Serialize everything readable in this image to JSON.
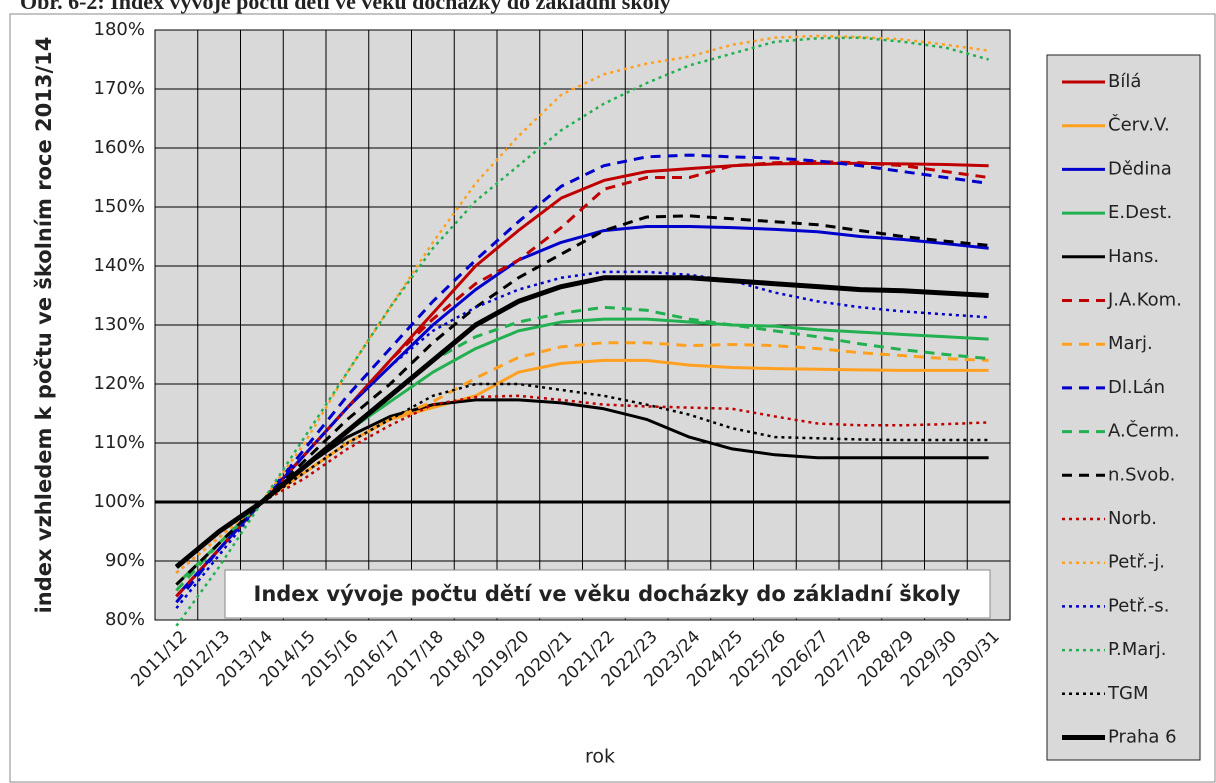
{
  "chart_data": {
    "type": "line",
    "heading": "Obr. 6-2: Index vývoje počtu dětí ve věku docházky do základní školy",
    "title": "Index vývoje počtu dětí ve věku docházky do základní školy",
    "x_label": "rok",
    "y_label": "index vzhledem k počtu ve školním roce 2013/14",
    "categories": [
      "2011/12",
      "2012/13",
      "2013/14",
      "2014/15",
      "2015/16",
      "2016/17",
      "2017/18",
      "2018/19",
      "2019/20",
      "2020/21",
      "2021/22",
      "2022/23",
      "2023/24",
      "2024/25",
      "2025/26",
      "2026/27",
      "2027/28",
      "2028/29",
      "2029/30",
      "2030/31"
    ],
    "ylim": [
      80,
      180
    ],
    "yticks": [
      {
        "value": 80,
        "label": "80%"
      },
      {
        "value": 90,
        "label": "90%"
      },
      {
        "value": 100,
        "label": "100%"
      },
      {
        "value": 110,
        "label": "110%"
      },
      {
        "value": 120,
        "label": "120%"
      },
      {
        "value": 130,
        "label": "130%"
      },
      {
        "value": 140,
        "label": "140%"
      },
      {
        "value": 150,
        "label": "150%"
      },
      {
        "value": 160,
        "label": "160%"
      },
      {
        "value": 170,
        "label": "170%"
      },
      {
        "value": 180,
        "label": "180%"
      }
    ],
    "x_axis_at": 100,
    "grid": true,
    "legend": "right",
    "series": [
      {
        "name": "Bílá",
        "color": "#c00000",
        "dash": "solid",
        "width": 3,
        "values": [
          84,
          92,
          100,
          108,
          116,
          124,
          132,
          140,
          146,
          151.5,
          154.5,
          156,
          156.5,
          157,
          157.3,
          157.4,
          157.4,
          157.3,
          157.2,
          157
        ]
      },
      {
        "name": "Červ.V.",
        "color": "#ffa020",
        "dash": "solid",
        "width": 3,
        "values": [
          86,
          93,
          100,
          105,
          110,
          114,
          116,
          118,
          122,
          123.5,
          124,
          124,
          123.2,
          122.8,
          122.6,
          122.5,
          122.4,
          122.3,
          122.3,
          122.3
        ]
      },
      {
        "name": "Dědina",
        "color": "#0000cc",
        "dash": "solid",
        "width": 3,
        "values": [
          84,
          92,
          100,
          108,
          116,
          123,
          130,
          136,
          141,
          144,
          146,
          146.7,
          146.7,
          146.5,
          146.2,
          145.8,
          145,
          144.5,
          143.8,
          143
        ]
      },
      {
        "name": "E.Dest.",
        "color": "#22b050",
        "dash": "solid",
        "width": 3,
        "values": [
          86,
          93,
          100,
          106,
          112,
          117,
          122,
          126,
          129,
          130.5,
          131,
          131,
          130.5,
          130,
          129.8,
          129.2,
          128.8,
          128.4,
          128,
          127.6
        ]
      },
      {
        "name": "Hans.",
        "color": "#000000",
        "dash": "solid",
        "width": 3,
        "values": [
          89,
          95,
          100,
          106,
          111,
          114.5,
          116.5,
          117.3,
          117.3,
          116.8,
          115.8,
          114,
          111,
          109,
          108,
          107.5,
          107.5,
          107.5,
          107.5,
          107.5
        ]
      },
      {
        "name": "J.A.Kom.",
        "color": "#c00000",
        "dash": "dashed",
        "width": 3,
        "values": [
          84,
          92,
          100,
          108,
          116,
          124,
          131,
          137,
          141,
          146.5,
          153,
          155,
          155,
          157,
          157.5,
          157.7,
          157.5,
          157,
          156,
          155
        ]
      },
      {
        "name": "Marj.",
        "color": "#ffa020",
        "dash": "dashed",
        "width": 3,
        "values": [
          85,
          93,
          100,
          105,
          110,
          114,
          117,
          121,
          124.5,
          126.3,
          127,
          127,
          126.5,
          126.7,
          126.5,
          126,
          125.3,
          124.8,
          124.3,
          124
        ]
      },
      {
        "name": "Dl.Lán",
        "color": "#0000cc",
        "dash": "dashed",
        "width": 3,
        "values": [
          83,
          92,
          100,
          109,
          118,
          126,
          134,
          141,
          147.5,
          153.5,
          157,
          158.5,
          158.8,
          158.5,
          158.3,
          157.8,
          157,
          156,
          155,
          154
        ]
      },
      {
        "name": "A.Čerm.",
        "color": "#22b050",
        "dash": "dashed",
        "width": 3,
        "values": [
          85,
          93,
          100,
          106,
          112,
          118,
          124,
          128,
          130.5,
          132,
          133,
          132.5,
          131,
          130,
          129,
          128,
          126.8,
          125.8,
          125,
          124.3
        ]
      },
      {
        "name": "n.Svob.",
        "color": "#000000",
        "dash": "dashed",
        "width": 3,
        "values": [
          86,
          93,
          100,
          107,
          114,
          120,
          127,
          133,
          138,
          142,
          146,
          148.3,
          148.5,
          148,
          147.5,
          147,
          146,
          145,
          144.2,
          143.5
        ]
      },
      {
        "name": "Norb.",
        "color": "#c00000",
        "dash": "dotted",
        "width": 2.5,
        "values": [
          88,
          94,
          100,
          104,
          109,
          113,
          116.5,
          117.8,
          118,
          117.3,
          116.5,
          116.2,
          116,
          115.8,
          114.5,
          113.3,
          113,
          113,
          113.2,
          113.5
        ]
      },
      {
        "name": "Petř.-j.",
        "color": "#ffa020",
        "dash": "dotted",
        "width": 2.5,
        "values": [
          88,
          94,
          100,
          110,
          122,
          133,
          144,
          154,
          162,
          169,
          172.5,
          174.3,
          175.5,
          177.5,
          178.7,
          179,
          178.8,
          178.4,
          177.5,
          176.5
        ]
      },
      {
        "name": "Petř.-s.",
        "color": "#0000cc",
        "dash": "dotted",
        "width": 2.5,
        "values": [
          82,
          91,
          100,
          108,
          116,
          123,
          129,
          133,
          136,
          138,
          139,
          139,
          138.5,
          137.5,
          135.5,
          134,
          133,
          132.3,
          131.8,
          131.3
        ]
      },
      {
        "name": "P.Marj.",
        "color": "#22b050",
        "dash": "dotted",
        "width": 2.5,
        "values": [
          79,
          89,
          100,
          111,
          122,
          133,
          143,
          151,
          157,
          163,
          167.5,
          171,
          174,
          176,
          178,
          178.6,
          178.7,
          178,
          177,
          175
        ]
      },
      {
        "name": "TGM",
        "color": "#000000",
        "dash": "dotted",
        "width": 2.5,
        "values": [
          89,
          95,
          100,
          105,
          110,
          114,
          118,
          120,
          120,
          119,
          118,
          116.5,
          114.8,
          112.5,
          111,
          110.8,
          110.6,
          110.5,
          110.5,
          110.5
        ]
      },
      {
        "name": "Praha 6",
        "color": "#000000",
        "dash": "solid",
        "width": 5,
        "values": [
          89,
          95,
          100,
          106,
          112,
          118,
          124,
          130,
          134,
          136.5,
          138,
          138,
          138,
          137.5,
          137,
          136.5,
          136,
          135.8,
          135.4,
          135
        ]
      }
    ]
  }
}
